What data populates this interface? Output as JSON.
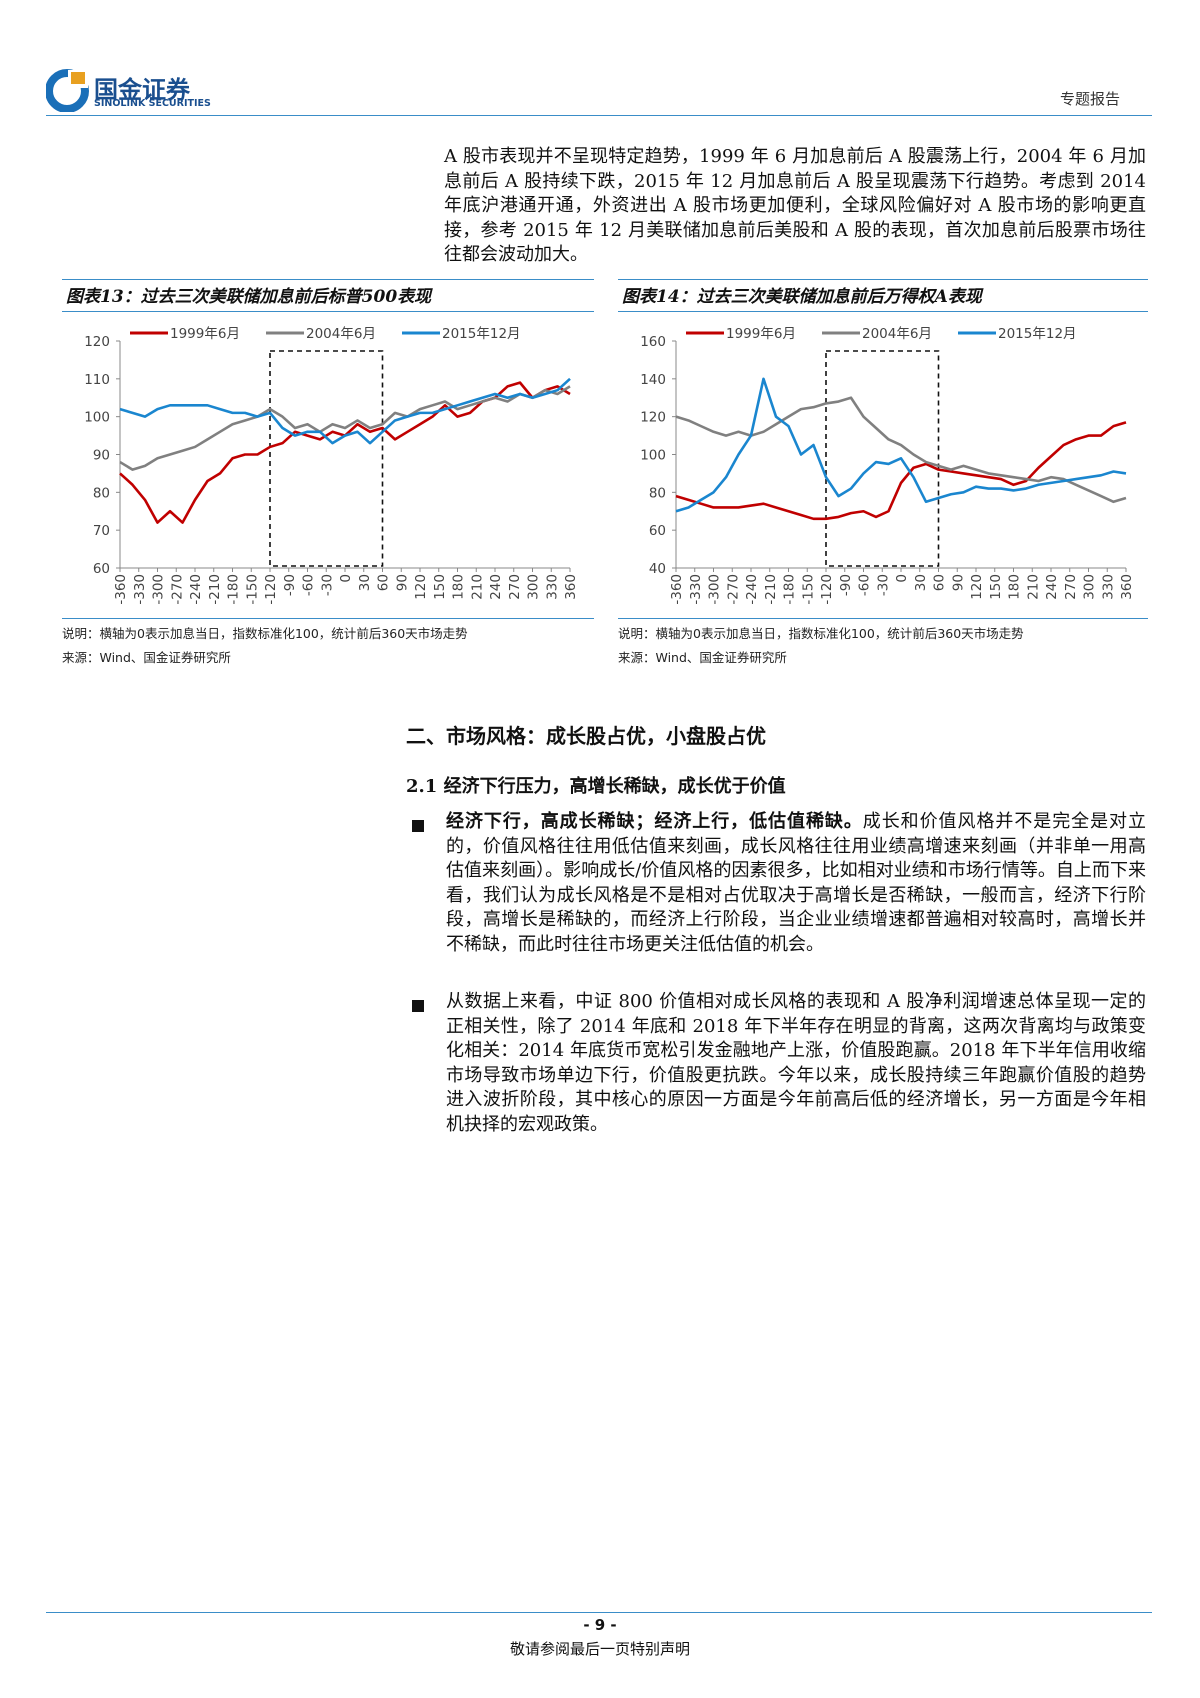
{
  "header": {
    "logo_name": "国金证券",
    "logo_en": "SINOLINK SECURITIES",
    "report_type": "专题报告"
  },
  "intro": "A 股市表现并不呈现特定趋势，1999 年 6 月加息前后 A 股震荡上行，2004 年 6 月加息前后 A 股持续下跌，2015 年 12 月加息前后 A 股呈现震荡下行趋势。考虑到 2014 年底沪港通开通，外资进出 A 股市场更加便利，全球风险偏好对 A 股市场的影响更直接，参考 2015 年 12 月美联储加息前后美股和 A 股的表现，首次加息前后股票市场往往都会波动加大。",
  "chart_data": [
    {
      "type": "line",
      "title": "图表13：过去三次美联储加息前后标普500表现",
      "note": "说明：横轴为0表示加息当日，指数标准化100，统计前后360天市场走势",
      "source": "来源：Wind、国金证券研究所",
      "x": [
        -360,
        -340,
        -320,
        -300,
        -280,
        -260,
        -240,
        -220,
        -200,
        -180,
        -160,
        -140,
        -120,
        -100,
        -80,
        -60,
        -40,
        -20,
        0,
        20,
        40,
        60,
        80,
        100,
        120,
        140,
        160,
        180,
        200,
        220,
        240,
        260,
        280,
        300,
        320,
        340,
        360
      ],
      "series": [
        {
          "name": "1999年6月",
          "color": "#c00000",
          "values": [
            85,
            82,
            78,
            72,
            75,
            72,
            78,
            83,
            85,
            89,
            90,
            90,
            92,
            93,
            96,
            95,
            94,
            96,
            95,
            98,
            96,
            97,
            94,
            96,
            98,
            100,
            103,
            100,
            101,
            104,
            105,
            108,
            109,
            105,
            107,
            108,
            106
          ]
        },
        {
          "name": "2004年6月",
          "color": "#808080",
          "values": [
            88,
            86,
            87,
            89,
            90,
            91,
            92,
            94,
            96,
            98,
            99,
            100,
            102,
            100,
            97,
            98,
            96,
            98,
            97,
            99,
            97,
            98,
            101,
            100,
            102,
            103,
            104,
            102,
            103,
            104,
            105,
            104,
            106,
            105,
            107,
            106,
            108
          ]
        },
        {
          "name": "2015年12月",
          "color": "#1a86cf",
          "values": [
            102,
            101,
            100,
            102,
            103,
            103,
            103,
            103,
            102,
            101,
            101,
            100,
            101,
            97,
            95,
            96,
            96,
            93,
            95,
            96,
            93,
            96,
            99,
            100,
            101,
            101,
            102,
            103,
            104,
            105,
            106,
            105,
            106,
            105,
            106,
            107,
            110
          ]
        }
      ],
      "xlim": [
        -360,
        360
      ],
      "xticks": [
        -360,
        -330,
        -300,
        -270,
        -240,
        -210,
        -180,
        -150,
        -120,
        -90,
        -60,
        -30,
        0,
        30,
        60,
        90,
        120,
        150,
        180,
        210,
        240,
        270,
        300,
        330,
        360
      ],
      "ylim": [
        60,
        120
      ],
      "yticks": [
        60,
        70,
        80,
        90,
        100,
        110,
        120
      ],
      "highlight_x": [
        -120,
        60
      ]
    },
    {
      "type": "line",
      "title": "图表14：过去三次美联储加息前后万得权A表现",
      "note": "说明：横轴为0表示加息当日，指数标准化100，统计前后360天市场走势",
      "source": "来源：Wind、国金证券研究所",
      "x": [
        -360,
        -340,
        -320,
        -300,
        -280,
        -260,
        -240,
        -220,
        -200,
        -180,
        -160,
        -140,
        -120,
        -100,
        -80,
        -60,
        -40,
        -20,
        0,
        20,
        40,
        60,
        80,
        100,
        120,
        140,
        160,
        180,
        200,
        220,
        240,
        260,
        280,
        300,
        320,
        340,
        360
      ],
      "series": [
        {
          "name": "1999年6月",
          "color": "#c00000",
          "values": [
            78,
            76,
            74,
            72,
            72,
            72,
            73,
            74,
            72,
            70,
            68,
            66,
            66,
            67,
            69,
            70,
            67,
            70,
            85,
            93,
            95,
            92,
            91,
            90,
            89,
            88,
            87,
            84,
            86,
            93,
            99,
            105,
            108,
            110,
            110,
            115,
            117
          ]
        },
        {
          "name": "2004年6月",
          "color": "#808080",
          "values": [
            120,
            118,
            115,
            112,
            110,
            112,
            110,
            112,
            116,
            120,
            124,
            125,
            127,
            128,
            130,
            120,
            114,
            108,
            105,
            100,
            96,
            94,
            92,
            94,
            92,
            90,
            89,
            88,
            87,
            86,
            88,
            87,
            84,
            81,
            78,
            75,
            77
          ]
        },
        {
          "name": "2015年12月",
          "color": "#1a86cf",
          "values": [
            70,
            72,
            76,
            80,
            88,
            100,
            110,
            140,
            120,
            115,
            100,
            105,
            88,
            78,
            82,
            90,
            96,
            95,
            98,
            88,
            75,
            77,
            79,
            80,
            83,
            82,
            82,
            81,
            82,
            84,
            85,
            86,
            87,
            88,
            89,
            91,
            90
          ]
        }
      ],
      "xlim": [
        -360,
        360
      ],
      "xticks": [
        -360,
        -330,
        -300,
        -270,
        -240,
        -210,
        -180,
        -150,
        -120,
        -90,
        -60,
        -30,
        0,
        30,
        60,
        90,
        120,
        150,
        180,
        210,
        240,
        270,
        300,
        330,
        360
      ],
      "ylim": [
        40,
        160
      ],
      "yticks": [
        40,
        60,
        80,
        100,
        120,
        140,
        160
      ],
      "highlight_x": [
        -120,
        60
      ]
    }
  ],
  "section": "二、市场风格：成长股占优，小盘股占优",
  "subsection": "2.1 经济下行压力，高增长稀缺，成长优于价值",
  "bullets": [
    {
      "bold": "经济下行，高成长稀缺；经济上行，低估值稀缺。",
      "text": "成长和价值风格并不是完全是对立的，价值风格往往用低估值来刻画，成长风格往往用业绩高增速来刻画（并非单一用高估值来刻画）。影响成长/价值风格的因素很多，比如相对业绩和市场行情等。自上而下来看，我们认为成长风格是不是相对占优取决于高增长是否稀缺，一般而言，经济下行阶段，高增长是稀缺的，而经济上行阶段，当企业业绩增速都普遍相对较高时，高增长并不稀缺，而此时往往市场更关注低估值的机会。"
    },
    {
      "text": "从数据上来看，中证 800 价值相对成长风格的表现和 A 股净利润增速总体呈现一定的正相关性，除了 2014 年底和 2018 年下半年存在明显的背离，这两次背离均与政策变化相关：2014 年底货币宽松引发金融地产上涨，价值股跑赢。2018 年下半年信用收缩市场导致市场单边下行，价值股更抗跌。今年以来，成长股持续三年跑赢价值股的趋势进入波折阶段，其中核心的原因一方面是今年前高后低的经济增长，另一方面是今年相机抉择的宏观政策。"
    }
  ],
  "footer": {
    "page": "- 9 -",
    "disclaimer": "敬请参阅最后一页特别声明"
  }
}
